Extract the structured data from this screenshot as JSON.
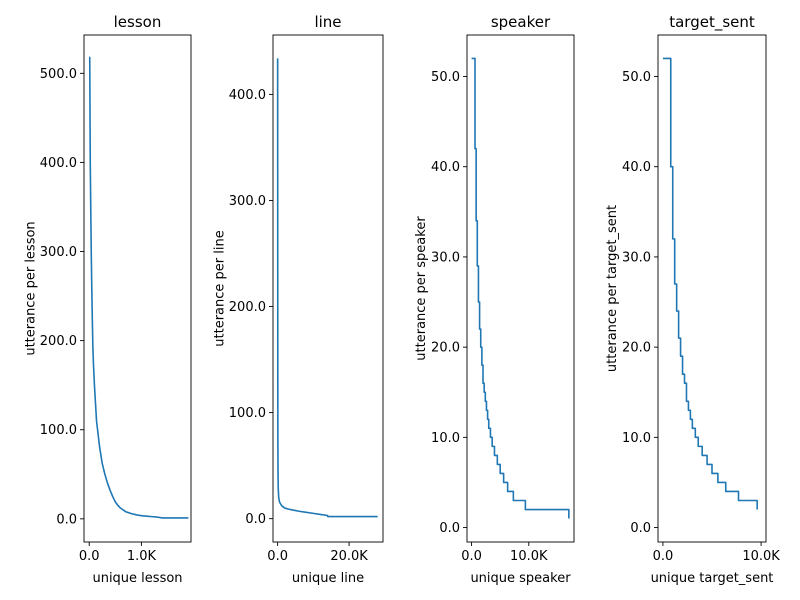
{
  "chart_data": [
    {
      "type": "line",
      "title": "lesson",
      "xlabel": "unique lesson",
      "ylabel": "utterance per lesson",
      "xlim": [
        -100,
        1950
      ],
      "ylim": [
        -26,
        543
      ],
      "xticks": [
        0,
        1000
      ],
      "xtick_labels": [
        "0.0",
        "1.0K"
      ],
      "yticks": [
        0,
        100,
        200,
        300,
        400,
        500
      ],
      "ytick_labels": [
        "0.0",
        "100.0",
        "200.0",
        "300.0",
        "400.0",
        "500.0"
      ],
      "series_color": "#1f77b4",
      "x": [
        0,
        10,
        20,
        30,
        40,
        50,
        60,
        70,
        80,
        100,
        120,
        140,
        170,
        200,
        250,
        300,
        350,
        400,
        450,
        500,
        550,
        600,
        700,
        800,
        900,
        1000,
        1100,
        1200,
        1300,
        1350,
        1400,
        1500,
        1600,
        1700,
        1800,
        1900
      ],
      "y": [
        518,
        518,
        400,
        345,
        295,
        255,
        222,
        193,
        175,
        150,
        130,
        110,
        95,
        80,
        62,
        50,
        40,
        32,
        25,
        19,
        15,
        12,
        8,
        6,
        4.5,
        3.5,
        3,
        2.5,
        2,
        1.5,
        1,
        1,
        1,
        1,
        1,
        1
      ]
    },
    {
      "type": "line",
      "title": "line",
      "xlabel": "unique line",
      "ylabel": "utterance per line",
      "xlim": [
        -1300,
        29500
      ],
      "ylim": [
        -22,
        456
      ],
      "xticks": [
        0,
        20000
      ],
      "xtick_labels": [
        "0.0",
        "20.0K"
      ],
      "yticks": [
        0,
        100,
        200,
        300,
        400
      ],
      "ytick_labels": [
        "0.0",
        "100.0",
        "200.0",
        "300.0",
        "400.0"
      ],
      "series_color": "#1f77b4",
      "x": [
        0,
        30,
        60,
        100,
        150,
        200,
        300,
        500,
        800,
        1200,
        2000,
        3000,
        4500,
        6000,
        8000,
        10000,
        12000,
        14000,
        14001,
        16000,
        20000,
        24000,
        28000
      ],
      "y": [
        434,
        200,
        80,
        45,
        32,
        26,
        20,
        16,
        14,
        12,
        10,
        9,
        8,
        7,
        6,
        5,
        4,
        3,
        2,
        2,
        2,
        2,
        2
      ]
    },
    {
      "type": "line",
      "title": "speaker",
      "xlabel": "unique speaker",
      "ylabel": "utterance per speaker",
      "xlim": [
        -800,
        17900
      ],
      "ylim": [
        -1.6,
        54.6
      ],
      "xticks": [
        0,
        10000
      ],
      "xtick_labels": [
        "0.0",
        "10.0K"
      ],
      "yticks": [
        0,
        10,
        20,
        30,
        40,
        50
      ],
      "ytick_labels": [
        "0.0",
        "10.0",
        "20.0",
        "30.0",
        "40.0",
        "50.0"
      ],
      "series_color": "#1f77b4",
      "x": [
        0,
        400,
        600,
        800,
        1000,
        1200,
        1400,
        1600,
        1800,
        2000,
        2200,
        2400,
        2600,
        2800,
        3000,
        3300,
        3600,
        4000,
        4500,
        5000,
        5600,
        6300,
        7300,
        9400,
        17000
      ],
      "y": [
        52,
        52,
        42,
        34,
        29,
        25,
        22,
        20,
        18,
        16,
        15,
        14,
        13,
        12,
        11,
        10,
        9,
        8,
        7,
        6,
        5,
        4,
        3,
        2,
        1
      ],
      "step": true
    },
    {
      "type": "line",
      "title": "target_sent",
      "xlabel": "unique target_sent",
      "ylabel": "utterance per target_sent",
      "xlim": [
        -500,
        10500
      ],
      "ylim": [
        -1.6,
        54.6
      ],
      "xticks": [
        0,
        10000
      ],
      "xtick_labels": [
        "0.0",
        "10.0K"
      ],
      "yticks": [
        0,
        10,
        20,
        30,
        40,
        50
      ],
      "ytick_labels": [
        "0.0",
        "10.0",
        "20.0",
        "30.0",
        "40.0",
        "50.0"
      ],
      "series_color": "#1f77b4",
      "x": [
        0,
        600,
        800,
        1000,
        1200,
        1400,
        1600,
        1800,
        2000,
        2200,
        2400,
        2600,
        2800,
        3000,
        3300,
        3600,
        4000,
        4500,
        5000,
        5600,
        6400,
        7700,
        9600
      ],
      "y": [
        52,
        52,
        40,
        32,
        27,
        24,
        21,
        19,
        17,
        16,
        14,
        13,
        12,
        11,
        10,
        9,
        8,
        7,
        6,
        5,
        4,
        3,
        2
      ],
      "step": true
    }
  ]
}
